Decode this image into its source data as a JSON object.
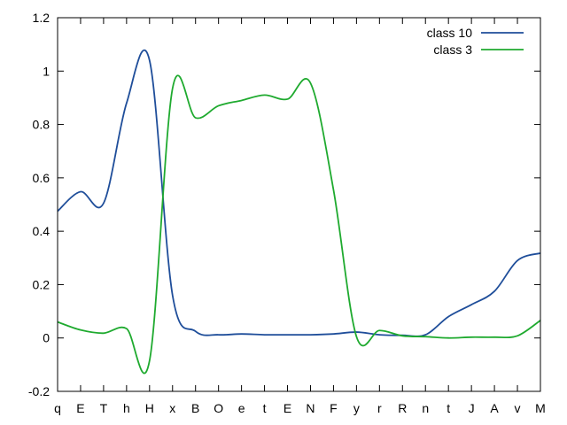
{
  "chart_data": {
    "type": "line",
    "categories": [
      "q",
      "E",
      "T",
      "h",
      "H",
      "x",
      "B",
      "O",
      "e",
      "t",
      "E",
      "N",
      "F",
      "y",
      "r",
      "R",
      "n",
      "t",
      "J",
      "A",
      "v",
      "M"
    ],
    "ylim": [
      -0.2,
      1.2
    ],
    "yticks": [
      -0.2,
      0,
      0.2,
      0.4,
      0.6,
      0.8,
      1,
      1.2
    ],
    "ytick_labels": [
      "-0.2",
      "0",
      "0.2",
      "0.4",
      "0.6",
      "0.8",
      "1",
      "1.2"
    ],
    "grid": false,
    "legend_position": "top-right",
    "series": [
      {
        "name": "class 10",
        "color": "#1f4e9a",
        "values": [
          0.475,
          0.548,
          0.505,
          0.88,
          1.04,
          0.16,
          0.025,
          0.012,
          0.015,
          0.012,
          0.012,
          0.012,
          0.015,
          0.022,
          0.012,
          0.01,
          0.012,
          0.08,
          0.125,
          0.175,
          0.29,
          0.318
        ]
      },
      {
        "name": "class 3",
        "color": "#1faa2f",
        "values": [
          0.06,
          0.03,
          0.018,
          0.035,
          -0.085,
          0.935,
          0.825,
          0.87,
          0.89,
          0.91,
          0.895,
          0.955,
          0.555,
          0.005,
          0.028,
          0.008,
          0.005,
          0.0,
          0.003,
          0.003,
          0.008,
          0.066
        ]
      }
    ]
  }
}
